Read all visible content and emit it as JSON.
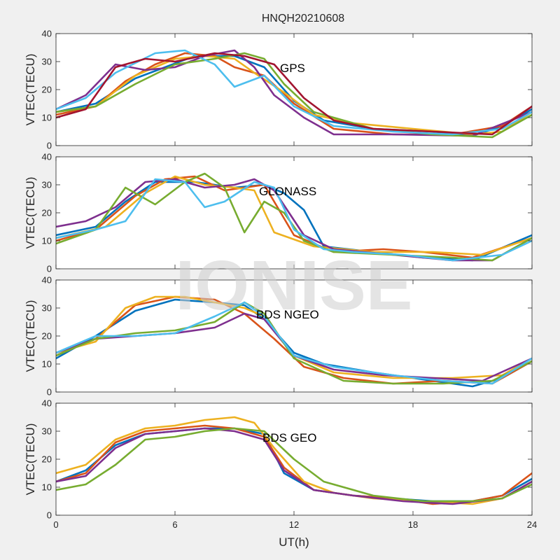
{
  "chart_data": {
    "type": "line",
    "title": "HNQH20210608",
    "watermark": "IONISE",
    "xlabel": "UT(h)",
    "xlim": [
      0,
      24
    ],
    "x_ticks": [
      0,
      6,
      12,
      18,
      24
    ],
    "x_tick_labels": [
      "0",
      "6",
      "12",
      "18",
      "24"
    ],
    "colors": [
      "#0072BD",
      "#D95319",
      "#EDB120",
      "#7E2F8E",
      "#77AC30",
      "#4DBEEE",
      "#A2142F"
    ],
    "panels": [
      {
        "label": "GPS",
        "ylabel": "VTEC(TECU)",
        "ylim": [
          0,
          40
        ],
        "y_ticks": [
          0,
          10,
          20,
          30,
          40
        ],
        "y_tick_labels": [
          "0",
          "10",
          "20",
          "30",
          "40"
        ],
        "series": [
          {
            "color": "#0072BD",
            "x": [
              0,
              2,
              4,
              5.5,
              7,
              9,
              10.5,
              12,
              13.5,
              16,
              19,
              21,
              22.5,
              24
            ],
            "y": [
              12,
              15,
              24,
              28,
              32,
              32,
              28,
              16,
              9,
              6,
              5,
              3.5,
              7,
              13
            ]
          },
          {
            "color": "#D95319",
            "x": [
              0,
              2,
              3.5,
              5,
              6.5,
              8,
              9,
              10.5,
              12,
              14,
              17,
              20,
              22.5,
              24
            ],
            "y": [
              11,
              14,
              23,
              29,
              33,
              32,
              28,
              25,
              15,
              6,
              4,
              4,
              7,
              14
            ]
          },
          {
            "color": "#EDB120",
            "x": [
              0,
              2,
              4,
              6,
              7.5,
              9,
              10,
              11.5,
              13,
              15,
              18,
              21,
              22.5,
              24
            ],
            "y": [
              12,
              14,
              25,
              31,
              32,
              31,
              26,
              19,
              11,
              8,
              6,
              4,
              5,
              12
            ]
          },
          {
            "color": "#7E2F8E",
            "x": [
              0,
              1.5,
              3,
              4.5,
              6,
              7.5,
              9,
              10,
              11,
              12.5,
              14,
              17,
              21,
              24
            ],
            "y": [
              13,
              18,
              29,
              27,
              28,
              32,
              34,
              28,
              18,
              10,
              4,
              4,
              3.5,
              12
            ]
          },
          {
            "color": "#77AC30",
            "x": [
              0,
              2,
              4,
              6,
              8,
              9.5,
              10.5,
              11.5,
              13,
              16,
              19,
              22,
              24
            ],
            "y": [
              12,
              14,
              22,
              29,
              31,
              33,
              31,
              22,
              12,
              6,
              4,
              3,
              11
            ]
          },
          {
            "color": "#4DBEEE",
            "x": [
              0,
              1.5,
              3,
              5,
              6.5,
              8,
              9,
              10.5,
              12,
              14,
              17,
              20,
              22.5,
              24
            ],
            "y": [
              13,
              17,
              26,
              33,
              34,
              29,
              21,
              25,
              14,
              7,
              5,
              4,
              6,
              12
            ]
          },
          {
            "color": "#A2142F",
            "x": [
              0,
              1.5,
              3,
              4.5,
              6,
              8,
              9.5,
              11,
              12.5,
              14,
              16,
              19,
              22,
              24
            ],
            "y": [
              10,
              13,
              28,
              31,
              30,
              33,
              32,
              29,
              17,
              9,
              6,
              5,
              4,
              14
            ]
          }
        ]
      },
      {
        "label": "GLONASS",
        "ylabel": "VTEC(TECU)",
        "ylim": [
          0,
          40
        ],
        "y_ticks": [
          0,
          10,
          20,
          30,
          40
        ],
        "y_tick_labels": [
          "0",
          "10",
          "20",
          "30",
          "40"
        ],
        "series": [
          {
            "color": "#0072BD",
            "x": [
              0,
              2,
              3.5,
              5,
              7,
              9,
              10.5,
              11.5,
              12.5,
              13.5,
              16,
              18.5,
              21,
              24
            ],
            "y": [
              12,
              15,
              24,
              31,
              31,
              29,
              30,
              27,
              21,
              8,
              6,
              4,
              3,
              12
            ]
          },
          {
            "color": "#D95319",
            "x": [
              0,
              2,
              4,
              5.5,
              7,
              8.5,
              9.5,
              10.5,
              12,
              14,
              16.5,
              18.5,
              21,
              24
            ],
            "y": [
              10,
              14,
              26,
              32,
              33,
              28,
              29,
              30,
              12,
              6,
              7,
              6,
              4,
              11
            ]
          },
          {
            "color": "#EDB120",
            "x": [
              0,
              2.5,
              4.5,
              6,
              7.5,
              9,
              10,
              11,
              13,
              16,
              19,
              21.5,
              24
            ],
            "y": [
              11,
              15,
              27,
              33,
              30,
              29,
              28,
              13,
              8,
              6,
              6,
              5,
              11
            ]
          },
          {
            "color": "#7E2F8E",
            "x": [
              0,
              1.5,
              3,
              4.5,
              6,
              7.5,
              9,
              10,
              11,
              12.5,
              14,
              17,
              20,
              22,
              24
            ],
            "y": [
              15,
              17,
              22,
              31,
              32,
              29,
              30,
              32,
              28,
              12,
              7,
              5,
              3,
              3,
              11
            ]
          },
          {
            "color": "#77AC30",
            "x": [
              0,
              2,
              3.5,
              5,
              6.5,
              7.5,
              8.5,
              9.5,
              10.5,
              11.5,
              12.5,
              14,
              17,
              20,
              22,
              24
            ],
            "y": [
              9,
              14,
              29,
              23,
              31,
              34,
              29,
              13,
              24,
              20,
              10,
              6,
              5,
              4,
              3,
              11
            ]
          },
          {
            "color": "#4DBEEE",
            "x": [
              0,
              2,
              3.5,
              5,
              6.5,
              7.5,
              8.5,
              10,
              11,
              12,
              13.5,
              15,
              17.5,
              20,
              22.5,
              24
            ],
            "y": [
              11,
              14,
              17,
              32,
              31,
              22,
              24,
              31,
              29,
              14,
              7,
              6,
              5,
              3,
              5,
              10
            ]
          }
        ]
      },
      {
        "label": "BDS NGEO",
        "ylabel": "VTEC(TECU)",
        "ylim": [
          0,
          40
        ],
        "y_ticks": [
          0,
          10,
          20,
          30,
          40
        ],
        "y_tick_labels": [
          "0",
          "10",
          "20",
          "30",
          "40"
        ],
        "series": [
          {
            "color": "#0072BD",
            "x": [
              0,
              2,
              4,
              6,
              8,
              9.5,
              10.5,
              12,
              13.5,
              16,
              19,
              21,
              22.5,
              24
            ],
            "y": [
              12,
              20,
              29,
              33,
              32,
              31,
              26,
              14,
              10,
              7,
              4,
              2,
              5,
              11
            ]
          },
          {
            "color": "#D95319",
            "x": [
              0,
              2,
              4,
              6,
              8,
              9.5,
              11,
              12.5,
              14.5,
              17,
              19.5,
              22,
              24
            ],
            "y": [
              13,
              19,
              31,
              34,
              33,
              28,
              19,
              9,
              5,
              3,
              4,
              3,
              11
            ]
          },
          {
            "color": "#EDB120",
            "x": [
              0,
              2,
              3.5,
              5,
              6.5,
              8,
              9.5,
              10.5,
              12,
              14,
              17,
              20,
              22.5,
              24
            ],
            "y": [
              14,
              18,
              30,
              34,
              34,
              32,
              30,
              27,
              13,
              7,
              5,
              5,
              6,
              12
            ]
          },
          {
            "color": "#7E2F8E",
            "x": [
              0,
              2,
              4,
              6,
              8,
              9.5,
              10.5,
              12,
              14,
              16.5,
              19,
              21.5,
              24
            ],
            "y": [
              14,
              19,
              20,
              21,
              23,
              28,
              26,
              13,
              8,
              6,
              5,
              4,
              12
            ]
          },
          {
            "color": "#77AC30",
            "x": [
              0,
              2,
              4,
              6,
              8,
              9.5,
              10.5,
              12,
              14.5,
              17,
              19.5,
              22,
              24
            ],
            "y": [
              13,
              19,
              21,
              22,
              25,
              32,
              28,
              12,
              4,
              3,
              3,
              4,
              11
            ]
          },
          {
            "color": "#4DBEEE",
            "x": [
              0,
              2,
              4,
              6,
              8,
              9.5,
              10.5,
              12,
              14,
              17,
              19.5,
              22,
              24
            ],
            "y": [
              14,
              20,
              20,
              21,
              27,
              32,
              27,
              13,
              9,
              6,
              4,
              3,
              12
            ]
          }
        ]
      },
      {
        "label": "BDS GEO",
        "ylabel": "VTEC(TECU)",
        "ylim": [
          0,
          40
        ],
        "y_ticks": [
          0,
          10,
          20,
          30,
          40
        ],
        "y_tick_labels": [
          "0",
          "10",
          "20",
          "30",
          "40"
        ],
        "series": [
          {
            "color": "#0072BD",
            "x": [
              0,
              1.5,
              3,
              4.5,
              6,
              7.5,
              9,
              10.5,
              11.5,
              13,
              15,
              17,
              19,
              21,
              22.5,
              24
            ],
            "y": [
              12,
              16,
              25,
              29,
              30,
              31,
              31,
              29,
              15,
              9,
              7,
              6,
              5,
              5,
              7,
              13
            ]
          },
          {
            "color": "#D95319",
            "x": [
              0,
              1.5,
              3,
              4.5,
              6,
              7.5,
              9,
              10.5,
              11.5,
              13,
              15,
              17,
              19,
              21,
              22.5,
              24
            ],
            "y": [
              12,
              15,
              26,
              30,
              31,
              32,
              31,
              28,
              17,
              9,
              7,
              6,
              4,
              5,
              7,
              15
            ]
          },
          {
            "color": "#EDB120",
            "x": [
              0,
              1.5,
              3,
              4.5,
              6,
              7.5,
              9,
              10,
              11,
              12.5,
              14,
              16,
              18.5,
              21,
              22.5,
              24
            ],
            "y": [
              15,
              18,
              27,
              31,
              32,
              34,
              35,
              33,
              24,
              12,
              8,
              6,
              5,
              4,
              6,
              12
            ]
          },
          {
            "color": "#7E2F8E",
            "x": [
              0,
              1.5,
              3,
              4.5,
              6,
              7.5,
              9,
              10.5,
              11.5,
              13,
              15,
              17.5,
              20,
              22.5,
              24
            ],
            "y": [
              12,
              14,
              24,
              29,
              30,
              31,
              30,
              27,
              16,
              9,
              7,
              5,
              4,
              6,
              12
            ]
          },
          {
            "color": "#77AC30",
            "x": [
              0,
              1.5,
              3,
              4.5,
              6,
              7.5,
              9,
              10.5,
              12,
              13.5,
              16,
              18.5,
              21,
              22.5,
              24
            ],
            "y": [
              9,
              11,
              18,
              27,
              28,
              30,
              31,
              30,
              20,
              12,
              7,
              5,
              5,
              6,
              11
            ]
          }
        ]
      }
    ]
  }
}
